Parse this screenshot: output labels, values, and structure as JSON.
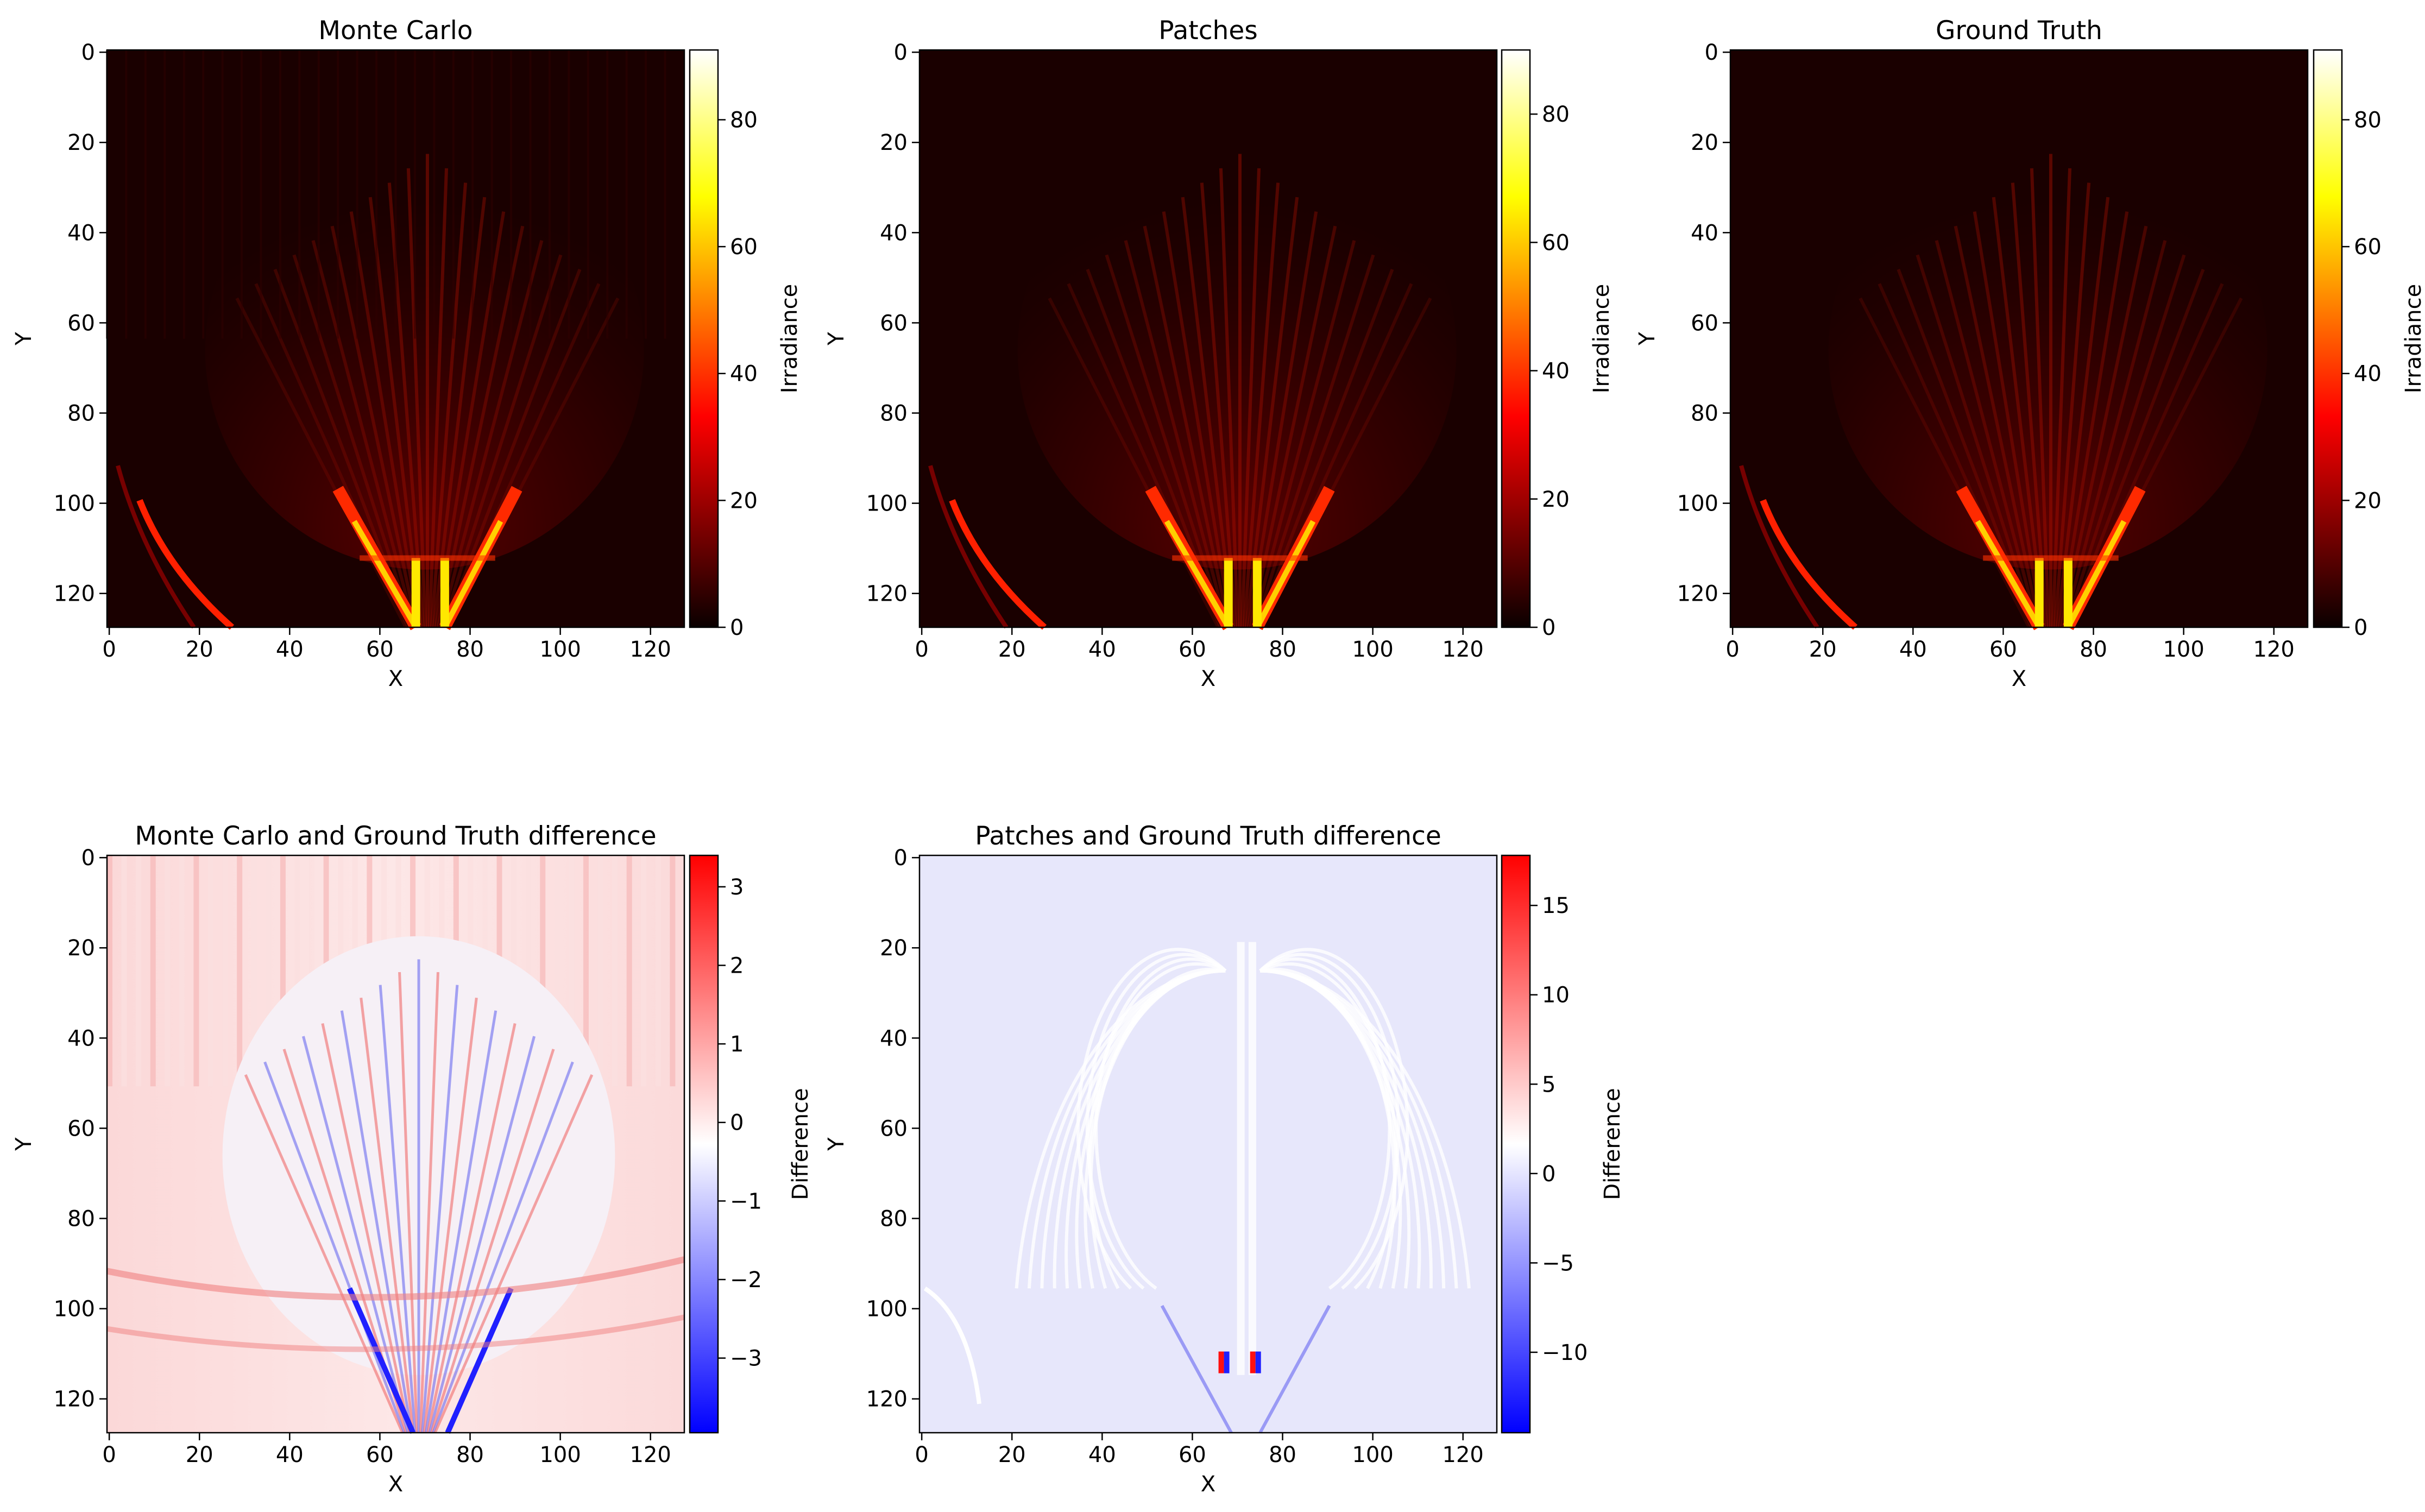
{
  "chart_data": [
    {
      "type": "heatmap",
      "title": "Monte Carlo",
      "xlabel": "X",
      "ylabel": "Y",
      "xlim": [
        0,
        128
      ],
      "ylim": [
        128,
        0
      ],
      "xticks": [
        0,
        20,
        40,
        60,
        80,
        100,
        120
      ],
      "yticks": [
        0,
        20,
        40,
        60,
        80,
        100,
        120
      ],
      "colormap": "hot",
      "colorbar": {
        "label": "Irradiance",
        "min": 0,
        "max": 91,
        "ticks": [
          0,
          20,
          40,
          60,
          80
        ]
      }
    },
    {
      "type": "heatmap",
      "title": "Patches",
      "xlabel": "X",
      "ylabel": "Y",
      "xlim": [
        0,
        128
      ],
      "ylim": [
        128,
        0
      ],
      "xticks": [
        0,
        20,
        40,
        60,
        80,
        100,
        120
      ],
      "yticks": [
        0,
        20,
        40,
        60,
        80,
        100,
        120
      ],
      "colormap": "hot",
      "colorbar": {
        "label": "Irradiance",
        "min": 0,
        "max": 90,
        "ticks": [
          0,
          20,
          40,
          60,
          80
        ]
      }
    },
    {
      "type": "heatmap",
      "title": "Ground Truth",
      "xlabel": "X",
      "ylabel": "Y",
      "xlim": [
        0,
        128
      ],
      "ylim": [
        128,
        0
      ],
      "xticks": [
        0,
        20,
        40,
        60,
        80,
        100,
        120
      ],
      "yticks": [
        0,
        20,
        40,
        60,
        80,
        100,
        120
      ],
      "colormap": "hot",
      "colorbar": {
        "label": "Irradiance",
        "min": 0,
        "max": 91,
        "ticks": [
          0,
          20,
          40,
          60,
          80
        ]
      }
    },
    {
      "type": "heatmap",
      "title": "Monte Carlo and Ground Truth difference",
      "xlabel": "X",
      "ylabel": "Y",
      "xlim": [
        0,
        128
      ],
      "ylim": [
        128,
        0
      ],
      "xticks": [
        0,
        20,
        40,
        60,
        80,
        100,
        120
      ],
      "yticks": [
        0,
        20,
        40,
        60,
        80,
        100,
        120
      ],
      "colormap": "bwr",
      "colorbar": {
        "label": "Difference",
        "min": -3.95,
        "max": 3.4,
        "ticks": [
          3,
          2,
          1,
          0,
          -1,
          -2,
          -3
        ],
        "tick_labels": [
          "3",
          "2",
          "1",
          "0",
          "−1",
          "−2",
          "−3"
        ]
      }
    },
    {
      "type": "heatmap",
      "title": "Patches and Ground Truth difference",
      "xlabel": "X",
      "ylabel": "Y",
      "xlim": [
        0,
        128
      ],
      "ylim": [
        128,
        0
      ],
      "xticks": [
        0,
        20,
        40,
        60,
        80,
        100,
        120
      ],
      "yticks": [
        0,
        20,
        40,
        60,
        80,
        100,
        120
      ],
      "colormap": "bwr",
      "colorbar": {
        "label": "Difference",
        "min": -14.5,
        "max": 17.8,
        "ticks": [
          15,
          10,
          5,
          0,
          -5,
          -10
        ],
        "tick_labels": [
          "15",
          "10",
          "5",
          "0",
          "−5",
          "−10"
        ]
      }
    }
  ]
}
